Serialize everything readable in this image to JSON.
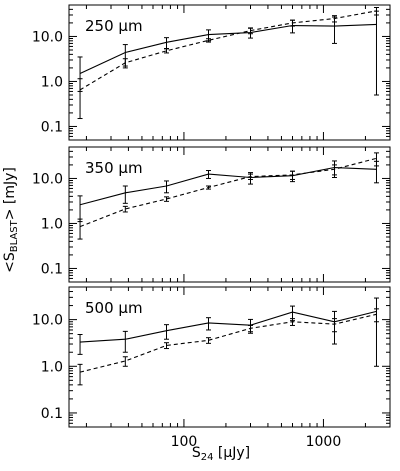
{
  "figure": {
    "ylabel_main": "<S",
    "ylabel_sub": "BLAST",
    "ylabel_tail": "> [mJy]",
    "xlabel_main": "S",
    "xlabel_sub": "24",
    "xlabel_tail": " [μJy]",
    "x_tick_labels": [
      "100",
      "1000"
    ],
    "y_tick_labels": [
      "0.1",
      "1.0",
      "10.0"
    ]
  },
  "chart_data": [
    {
      "type": "line",
      "title": "250 μm",
      "x_scale": "log",
      "y_scale": "log",
      "xlim": [
        15,
        3000
      ],
      "ylim": [
        0.05,
        50
      ],
      "grid": false,
      "series": [
        {
          "style": "solid",
          "x": [
            18,
            38,
            75,
            150,
            300,
            600,
            1200,
            2400
          ],
          "y": [
            1.5,
            4.4,
            7.4,
            11,
            12.2,
            17.5,
            17,
            18.5
          ],
          "err_lo": [
            0.9,
            2.2,
            2.0,
            3.0,
            3.0,
            5.5,
            10,
            18
          ],
          "err_hi": [
            2.0,
            2.2,
            2.0,
            3.0,
            3.0,
            5.5,
            10,
            18
          ]
        },
        {
          "style": "dashed",
          "x": [
            18,
            38,
            75,
            150,
            300,
            600,
            1200,
            2400
          ],
          "y": [
            0.65,
            2.6,
            4.8,
            8.2,
            13.5,
            20,
            25,
            37
          ],
          "err_lo": [
            0.5,
            0.6,
            0.5,
            0.7,
            2.0,
            3.0,
            4.0,
            7.0
          ],
          "err_hi": [
            0.5,
            0.6,
            0.5,
            0.7,
            2.0,
            3.0,
            4.0,
            7.0
          ]
        }
      ]
    },
    {
      "type": "line",
      "title": "350 μm",
      "x_scale": "log",
      "y_scale": "log",
      "xlim": [
        15,
        3000
      ],
      "ylim": [
        0.05,
        50
      ],
      "grid": false,
      "series": [
        {
          "style": "solid",
          "x": [
            18,
            38,
            75,
            150,
            300,
            600,
            1200,
            2400
          ],
          "y": [
            2.6,
            4.8,
            6.8,
            12.5,
            10.5,
            11.5,
            17.5,
            16
          ],
          "err_lo": [
            1.5,
            2.0,
            2.0,
            2.5,
            3.0,
            3.0,
            7.0,
            8.0
          ],
          "err_hi": [
            1.5,
            2.0,
            2.0,
            2.5,
            3.0,
            3.0,
            7.0,
            8.0
          ]
        },
        {
          "style": "dashed",
          "x": [
            18,
            38,
            75,
            150,
            300,
            600,
            1200,
            2400
          ],
          "y": [
            0.85,
            2.1,
            3.5,
            6.3,
            11,
            12,
            16,
            28
          ],
          "err_lo": [
            0.4,
            0.3,
            0.4,
            0.5,
            1.5,
            2.5,
            4.0,
            9.0
          ],
          "err_hi": [
            0.4,
            0.3,
            0.4,
            0.5,
            1.5,
            2.5,
            4.0,
            9.0
          ]
        }
      ]
    },
    {
      "type": "line",
      "title": "500 μm",
      "x_scale": "log",
      "y_scale": "log",
      "xlim": [
        15,
        3000
      ],
      "ylim": [
        0.05,
        50
      ],
      "grid": false,
      "series": [
        {
          "style": "solid",
          "x": [
            18,
            38,
            75,
            150,
            300,
            600,
            1200,
            2400
          ],
          "y": [
            3.3,
            3.8,
            5.8,
            8.5,
            7.6,
            14.5,
            9.0,
            15
          ],
          "err_lo": [
            1.5,
            1.8,
            2.0,
            2.5,
            2.5,
            5.0,
            6.0,
            14
          ],
          "err_hi": [
            1.5,
            1.8,
            2.0,
            2.5,
            2.5,
            5.0,
            6.0,
            14
          ]
        },
        {
          "style": "dashed",
          "x": [
            18,
            38,
            75,
            150,
            300,
            600,
            1200,
            2400
          ],
          "y": [
            0.75,
            1.3,
            2.8,
            3.6,
            6.5,
            9.0,
            8.0,
            13
          ],
          "err_lo": [
            0.35,
            0.3,
            0.4,
            0.5,
            1.0,
            1.5,
            2.5,
            4.0
          ],
          "err_hi": [
            0.35,
            0.3,
            0.4,
            0.5,
            1.0,
            1.5,
            2.5,
            4.0
          ]
        }
      ]
    }
  ]
}
